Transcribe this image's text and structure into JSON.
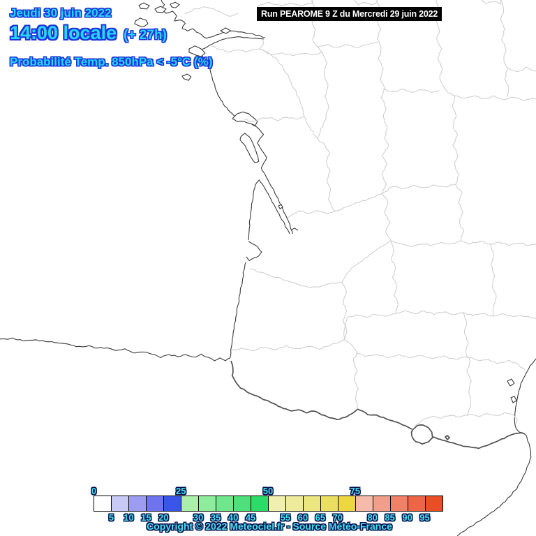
{
  "header": {
    "date_line": "Jeudi 30 juin 2022",
    "time_line": "14:00 locale",
    "offset_label": "(+ 27h)",
    "variable_line": "Probabilité Temp. 850hPa < -5°C (%)"
  },
  "run_banner": {
    "label": "Run PEAROME 9 Z du Mercredi 29 juin 2022"
  },
  "footer": {
    "copyright": "Copyright © 2022 Meteociel.fr - Source Météo-France"
  },
  "scale": {
    "unit": "%",
    "min": 0,
    "max": 100,
    "step": 5,
    "ticks_top": [
      0,
      25,
      50,
      75
    ],
    "ticks_bottom": [
      5,
      10,
      15,
      20,
      30,
      35,
      40,
      45,
      55,
      60,
      65,
      70,
      80,
      85,
      90,
      95
    ],
    "cell_colors": [
      "#FFFFFF",
      "#C9C9F6",
      "#9C9CF0",
      "#6F74EE",
      "#3A55EA",
      "#ABEFAD",
      "#8FEC9C",
      "#70E78C",
      "#4EE17B",
      "#2BDC66",
      "#F0EFB0",
      "#EEEC9A",
      "#ECE680",
      "#EBDF63",
      "#EDD73E",
      "#F4BBAA",
      "#F19E8A",
      "#EF8168",
      "#EC6547",
      "#E94E27"
    ]
  },
  "colors": {
    "text_cyan": "#24D7F7",
    "text_outline_blue": "#1E33DB",
    "tick_cyan": "#49DFF0",
    "tick_outline": "#07144E",
    "banner_bg": "#000000",
    "banner_text": "#FFFFFF",
    "coastline": "#3A3A3A",
    "department_border": "#CBCBCB",
    "country_border": "#4F4F4F",
    "sea_land": "#FFFFFF"
  },
  "map": {
    "description": "Coastline map of south-west France (Bay of Biscay, Pyrenees, Gulf of Lion) with department boundaries",
    "features": [
      "brittany-coast",
      "loire-estuary",
      "ile-de-re",
      "ile-d-oleron",
      "gironde-estuary",
      "arcachon-basin",
      "landes-coast",
      "spanish-north-coast",
      "pyrenees-border",
      "andorra",
      "mediterranean-coast",
      "catalonia-coast",
      "department-boundaries"
    ]
  }
}
